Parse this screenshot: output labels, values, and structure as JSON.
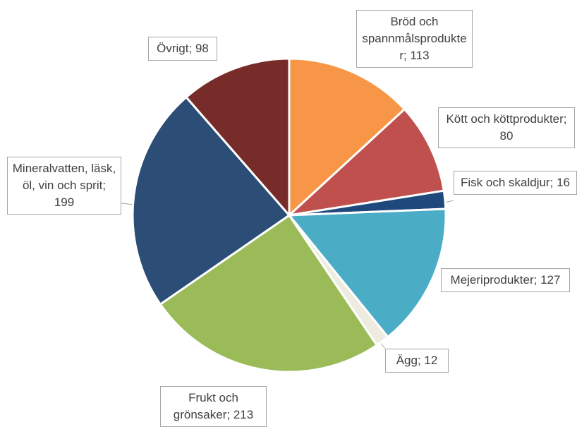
{
  "chart_data": {
    "type": "pie",
    "categories": [
      "Bröd och spannmålsprodukter",
      "Kött och köttprodukter",
      "Fisk och skaldjur",
      "Mejeriprodukter",
      "Ägg",
      "Frukt och grönsaker",
      "Mineralvatten, läsk, öl, vin och sprit",
      "Övrigt"
    ],
    "values": [
      113,
      80,
      16,
      127,
      12,
      213,
      199,
      98
    ],
    "colors": [
      "#F79646",
      "#C0504D",
      "#1F497D",
      "#4BACC6",
      "#EEECE1",
      "#9BBB59",
      "#2C4D75",
      "#772C2A"
    ],
    "label_separator": "; "
  }
}
